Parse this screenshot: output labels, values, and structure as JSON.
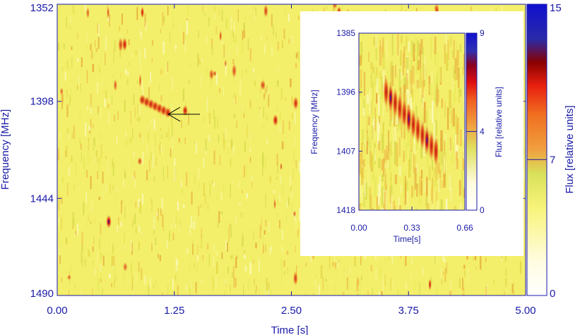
{
  "chart_data": [
    {
      "type": "heatmap",
      "title": "",
      "xlabel": "Time [s]",
      "ylabel": "Frequency [MHz]",
      "xlim": [
        0.0,
        5.0
      ],
      "ylim": [
        1352,
        1490
      ],
      "y_inverted": true,
      "xticks": [
        "0.00",
        "1.25",
        "2.50",
        "3.75",
        "5.00"
      ],
      "yticks": [
        "1352",
        "1398",
        "1444",
        "1490"
      ],
      "colorbar": {
        "label": "Flux [relative units]",
        "min": 0,
        "max": 15,
        "ticks": [
          "0",
          "7",
          "15"
        ]
      },
      "annotations": [
        {
          "type": "arrow",
          "points_to": {
            "time_s": 1.1,
            "freq_mhz": 1400
          }
        }
      ],
      "features": [
        {
          "time_s": 0.72,
          "freq_mhz": 1371,
          "peak": 11
        },
        {
          "time_s": 1.0,
          "freq_mhz": 1400,
          "peak": 9
        },
        {
          "time_s": 0.55,
          "freq_mhz": 1455,
          "peak": 14
        }
      ]
    },
    {
      "type": "heatmap",
      "title": "",
      "xlabel": "Time[s]",
      "ylabel": "Frequency [MHz]",
      "xlim": [
        0.0,
        0.66
      ],
      "ylim": [
        1385,
        1418
      ],
      "y_inverted": true,
      "xticks": [
        "0.00",
        "0.33",
        "0.66"
      ],
      "yticks": [
        "1385",
        "1396",
        "1407",
        "1418"
      ],
      "colorbar": {
        "label": "Flux [relative units]",
        "min": 0,
        "max": 9,
        "ticks": [
          "0",
          "4",
          "9"
        ]
      },
      "burst": {
        "time_start_s": 0.17,
        "time_end_s": 0.48,
        "freq_start_mhz": 1396,
        "freq_end_mhz": 1407,
        "peak": 9
      }
    }
  ],
  "colors": {
    "axis_label": "#1a1aa8",
    "tick_label": "#1a1aa8",
    "background": "#f3ef6a"
  }
}
